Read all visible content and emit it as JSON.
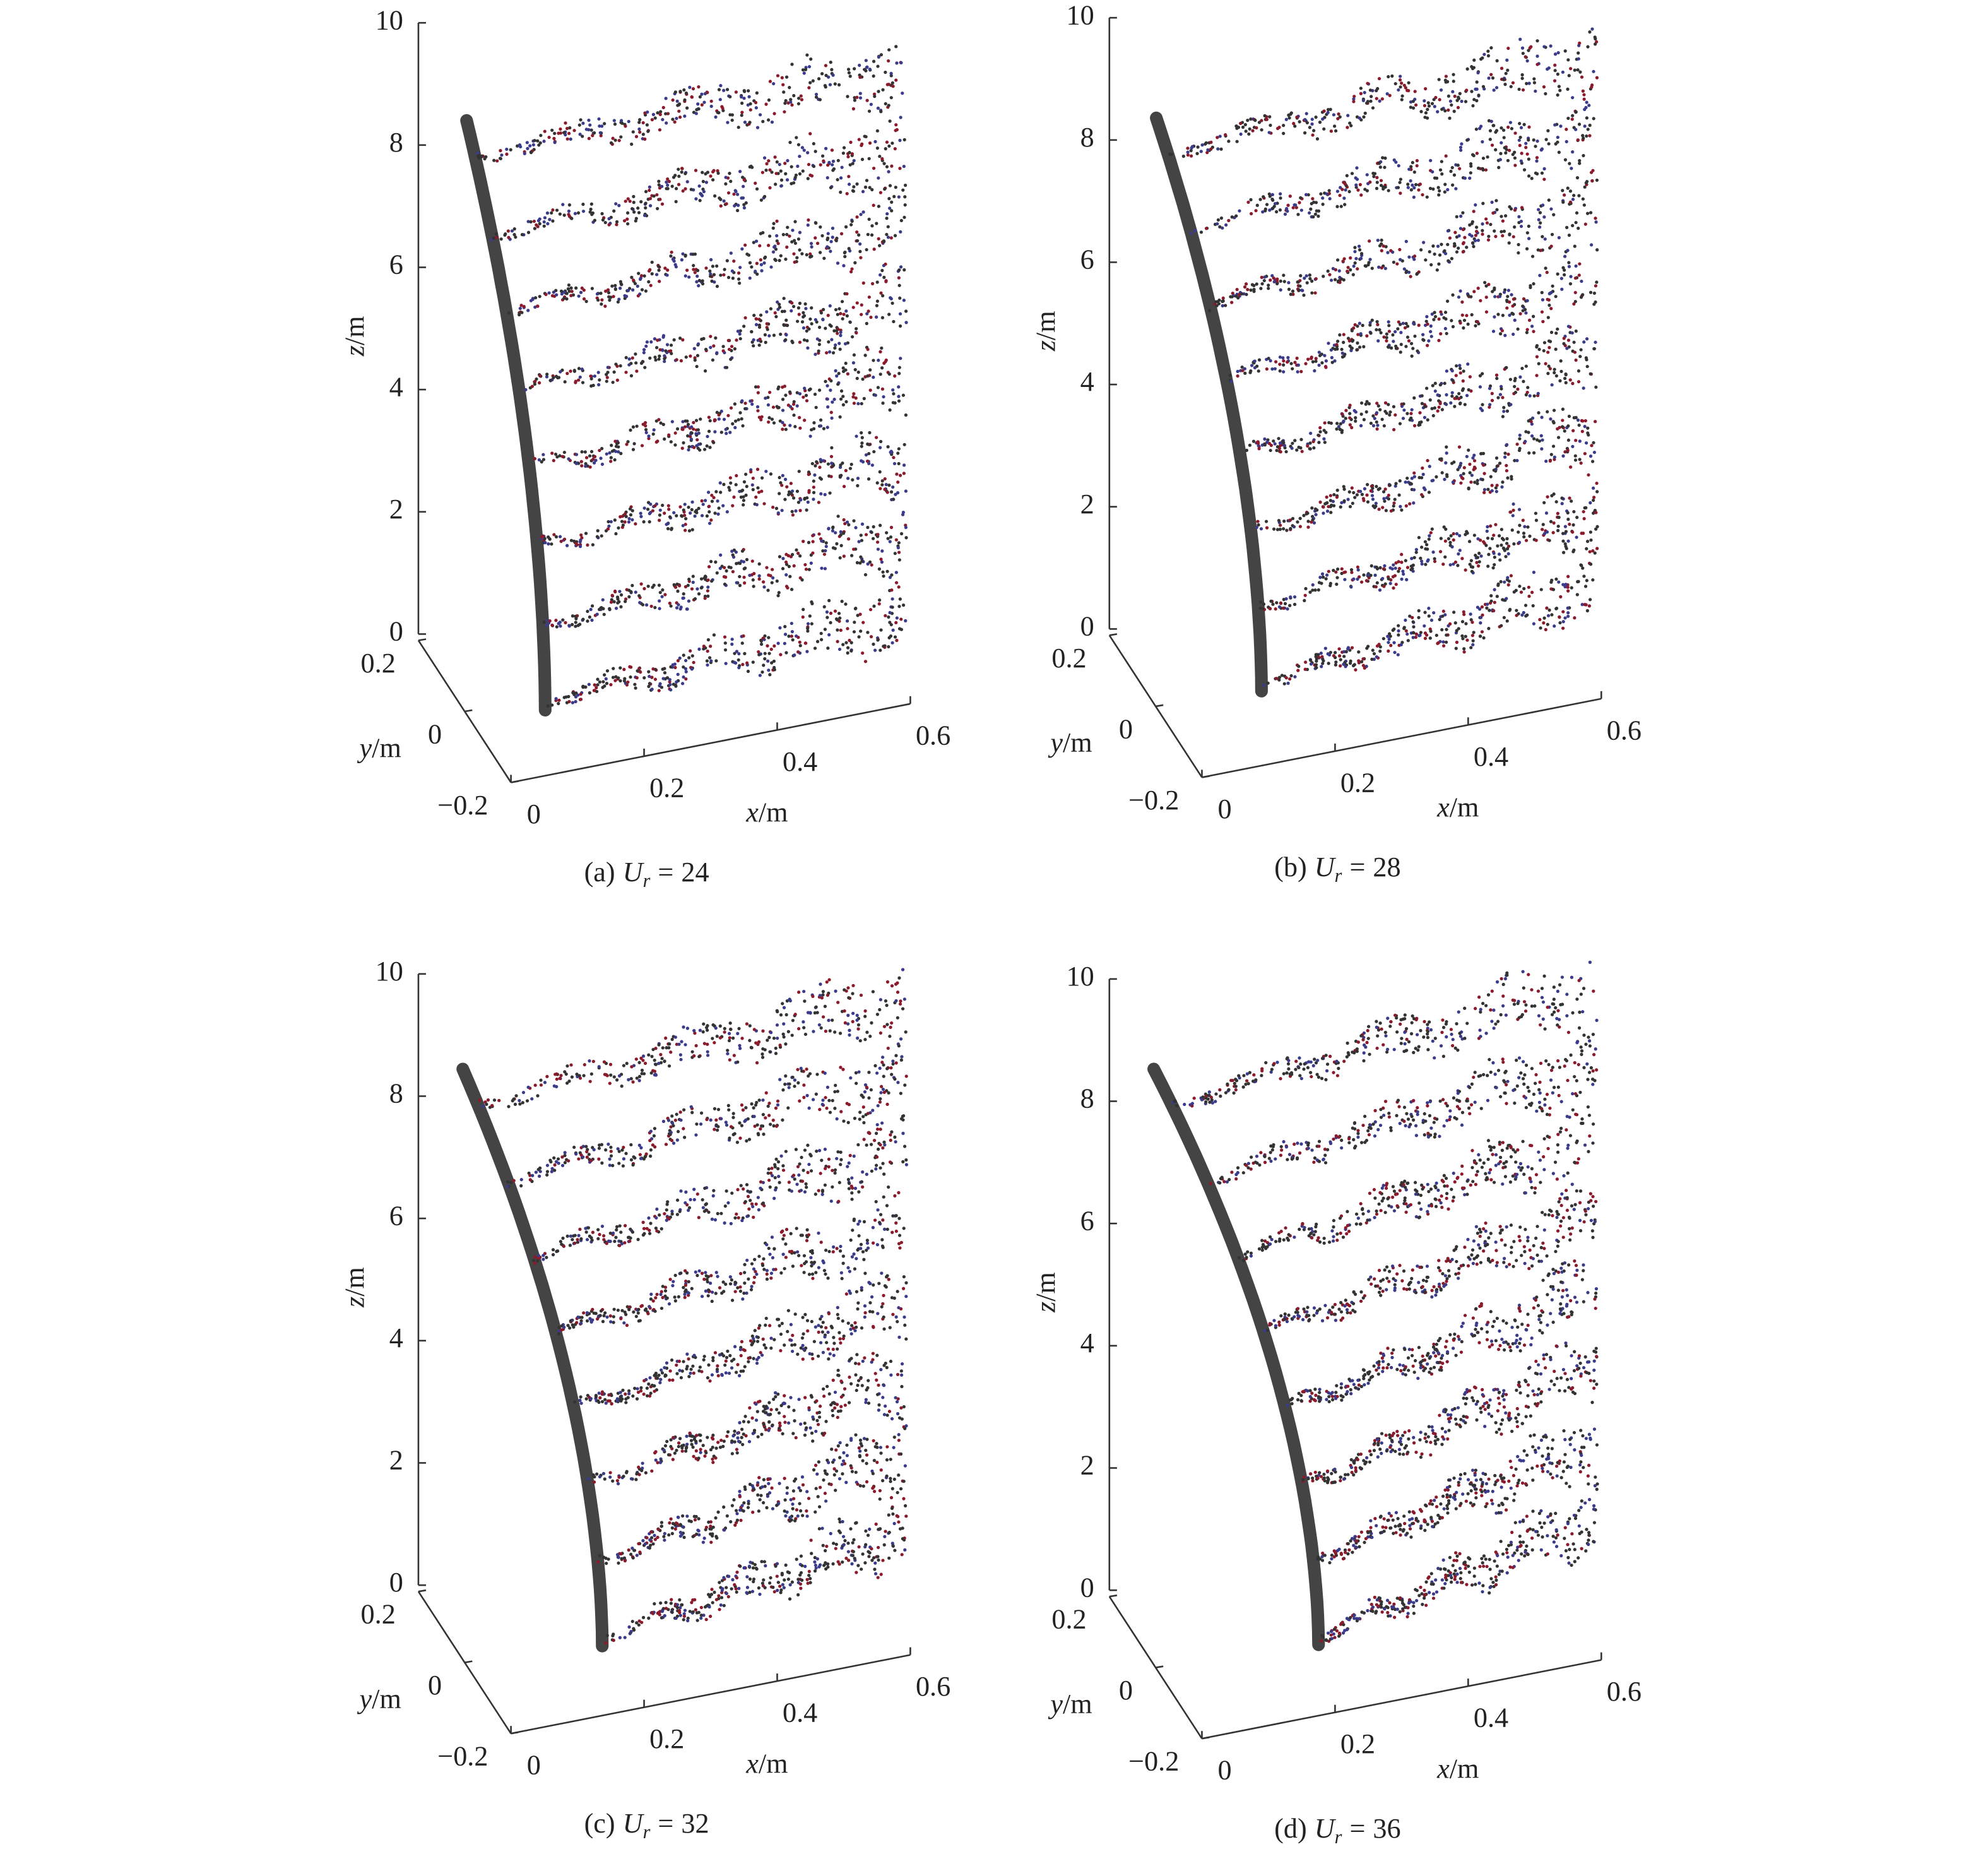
{
  "chart_data": [
    {
      "type": "scatter3d",
      "caption": {
        "label": "(a)",
        "symbol": "U",
        "subscript": "r",
        "relation": "=",
        "value": 24
      },
      "xlabel": {
        "symbol": "x",
        "unit": "/m"
      },
      "ylabel": {
        "symbol": "y",
        "unit": "/m"
      },
      "zlabel": {
        "symbol": "z",
        "unit": "/m"
      },
      "xlim": [
        0,
        0.6
      ],
      "xticks": [
        0,
        0.2,
        0.4,
        0.6
      ],
      "ylim": [
        -0.2,
        0.2
      ],
      "yticks": [
        {
          "value": -0.2,
          "label": "−0.2"
        },
        0,
        0.2
      ],
      "zlim": [
        0,
        10
      ],
      "zticks": [
        0,
        2,
        4,
        6,
        8,
        10
      ]
    },
    {
      "type": "scatter3d",
      "caption": {
        "label": "(b)",
        "symbol": "U",
        "subscript": "r",
        "relation": "=",
        "value": 28
      },
      "xlabel": {
        "symbol": "x",
        "unit": "/m"
      },
      "ylabel": {
        "symbol": "y",
        "unit": "/m"
      },
      "zlabel": {
        "symbol": "z",
        "unit": "/m"
      },
      "xlim": [
        0,
        0.6
      ],
      "xticks": [
        0,
        0.2,
        0.4,
        0.6
      ],
      "ylim": [
        -0.2,
        0.2
      ],
      "yticks": [
        {
          "value": -0.2,
          "label": "−0.2"
        },
        0,
        0.2
      ],
      "zlim": [
        0,
        10
      ],
      "zticks": [
        0,
        2,
        4,
        6,
        8,
        10
      ]
    },
    {
      "type": "scatter3d",
      "caption": {
        "label": "(c)",
        "symbol": "U",
        "subscript": "r",
        "relation": "=",
        "value": 32
      },
      "xlabel": {
        "symbol": "x",
        "unit": "/m"
      },
      "ylabel": {
        "symbol": "y",
        "unit": "/m"
      },
      "zlabel": {
        "symbol": "z",
        "unit": "/m"
      },
      "xlim": [
        0,
        0.6
      ],
      "xticks": [
        0,
        0.2,
        0.4,
        0.6
      ],
      "ylim": [
        -0.2,
        0.2
      ],
      "yticks": [
        {
          "value": -0.2,
          "label": "−0.2"
        },
        0,
        0.2
      ],
      "zlim": [
        0,
        10
      ],
      "zticks": [
        0,
        2,
        4,
        6,
        8,
        10
      ]
    },
    {
      "type": "scatter3d",
      "caption": {
        "label": "(d)",
        "symbol": "U",
        "subscript": "r",
        "relation": "=",
        "value": 36
      },
      "xlabel": {
        "symbol": "x",
        "unit": "/m"
      },
      "ylabel": {
        "symbol": "y",
        "unit": "/m"
      },
      "zlabel": {
        "symbol": "z",
        "unit": "/m"
      },
      "xlim": [
        0,
        0.6
      ],
      "xticks": [
        0,
        0.2,
        0.4,
        0.6
      ],
      "ylim": [
        -0.2,
        0.2
      ],
      "yticks": [
        {
          "value": -0.2,
          "label": "−0.2"
        },
        0,
        0.2
      ],
      "zlim": [
        0,
        10
      ],
      "zticks": [
        0,
        2,
        4,
        6,
        8,
        10
      ]
    }
  ]
}
